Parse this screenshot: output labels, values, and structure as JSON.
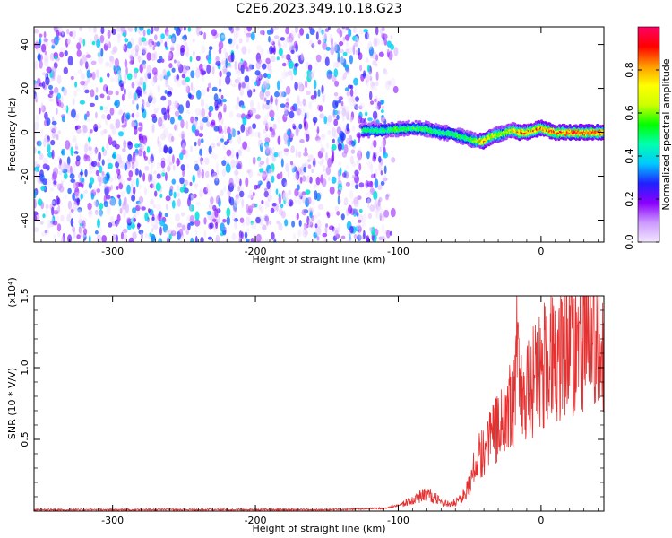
{
  "title": "C2E6.2023.349.10.18.G23",
  "colors": {
    "snr_line": "#e53030",
    "axis": "#000000",
    "background": "#ffffff",
    "colormap": [
      "#f2e6ff",
      "#cc99ff",
      "#8b00ff",
      "#2020ff",
      "#00c8ff",
      "#00ffb0",
      "#00ff00",
      "#ccff00",
      "#ffff00",
      "#ff9900",
      "#ff0000",
      "#ff0066"
    ]
  },
  "chart_data": [
    {
      "type": "heatmap",
      "name": "spectrogram",
      "xlabel": "Height of straight line (km)",
      "ylabel": "Frequency (Hz)",
      "xlim": [
        -355,
        44
      ],
      "ylim": [
        -50,
        48
      ],
      "xticks": [
        -300,
        -200,
        -100,
        0
      ],
      "xtick_labels": [
        "-300",
        "-200",
        "-100",
        "0"
      ],
      "yticks": [
        -40,
        -20,
        0,
        20,
        40
      ],
      "ytick_labels": [
        "-40",
        "-20",
        "0",
        "20",
        "40"
      ],
      "noise_region_x": [
        -355,
        -110
      ],
      "signal_ridge": {
        "x": [
          -125,
          -110,
          -100,
          -90,
          -80,
          -70,
          -60,
          -50,
          -45,
          -40,
          -35,
          -30,
          -25,
          -20,
          -15,
          -10,
          -5,
          0,
          5,
          10,
          20,
          30,
          44
        ],
        "freq": [
          1,
          1,
          1.5,
          2,
          1.5,
          0,
          -1,
          -3,
          -4,
          -4,
          -2,
          -1,
          0,
          1,
          0,
          0,
          1,
          2,
          1,
          0,
          0,
          0,
          0
        ],
        "amplitude": [
          0.55,
          0.5,
          0.6,
          0.55,
          0.6,
          0.55,
          0.55,
          0.6,
          0.7,
          0.85,
          0.8,
          0.7,
          0.7,
          0.75,
          0.9,
          0.9,
          0.85,
          0.9,
          0.9,
          0.95,
          0.95,
          0.95,
          0.95
        ]
      },
      "colorbar": {
        "label": "Normalized spectral amplitude",
        "range": [
          0,
          1
        ],
        "ticks": [
          0.0,
          0.2,
          0.4,
          0.6,
          0.8
        ],
        "tick_labels": [
          "0.0",
          "0.2",
          "0.4",
          "0.6",
          "0.8"
        ]
      }
    },
    {
      "type": "line",
      "name": "snr",
      "xlabel": "Height of straight line (km)",
      "ylabel": "SNR (10 * V/V)",
      "y_multiplier_label": "(x10⁴)",
      "xlim": [
        -355,
        44
      ],
      "ylim": [
        0,
        1.5
      ],
      "xticks": [
        -300,
        -200,
        -100,
        0
      ],
      "xtick_labels": [
        "-300",
        "-200",
        "-100",
        "0"
      ],
      "yticks": [
        0.5,
        1.0,
        1.5
      ],
      "ytick_labels": [
        "0.5",
        "1.0",
        "1.5"
      ],
      "series": [
        {
          "name": "SNR",
          "x": [
            -355,
            -300,
            -250,
            -200,
            -150,
            -110,
            -100,
            -90,
            -80,
            -75,
            -70,
            -65,
            -60,
            -55,
            -50,
            -45,
            -40,
            -35,
            -30,
            -25,
            -20,
            -17,
            -15,
            -10,
            -5,
            0,
            5,
            10,
            20,
            30,
            44
          ],
          "y": [
            0.01,
            0.01,
            0.01,
            0.01,
            0.01,
            0.02,
            0.04,
            0.08,
            0.12,
            0.1,
            0.06,
            0.05,
            0.06,
            0.1,
            0.2,
            0.35,
            0.45,
            0.5,
            0.6,
            0.65,
            0.75,
            1.1,
            0.85,
            0.8,
            0.9,
            1.0,
            1.08,
            1.12,
            1.18,
            1.22,
            1.24
          ]
        }
      ]
    }
  ]
}
